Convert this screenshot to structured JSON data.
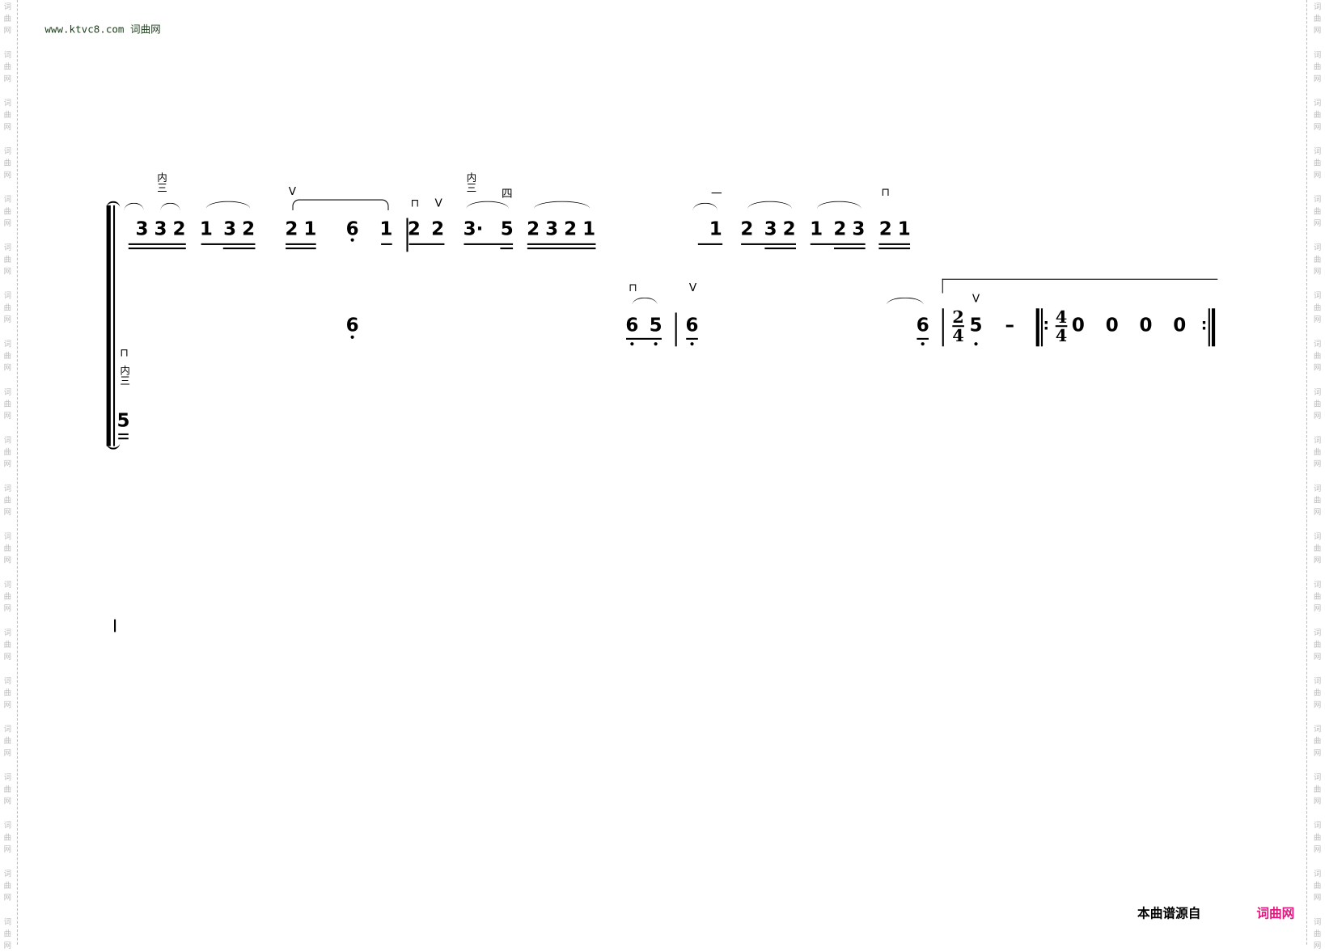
{
  "header": {
    "site_url": "www.ktvc8.com",
    "site_name": "词曲网"
  },
  "watermark": {
    "chars": [
      "词",
      "曲",
      "网"
    ]
  },
  "footer": {
    "source_label": "本曲谱源自",
    "source_site": "词曲网",
    "source_color": "#e0187f"
  },
  "score": {
    "row1_notes": [
      "3",
      "3",
      "2",
      "1",
      "3",
      "2",
      "2",
      "1",
      "6",
      "1",
      "2",
      "2",
      "3·",
      "5",
      "2",
      "3",
      "2",
      "1",
      "1",
      "2",
      "3",
      "2",
      "1",
      "2",
      "3",
      "2",
      "1"
    ],
    "row2_notes": [
      "6",
      "6",
      "5",
      "6",
      "6",
      "5",
      "–",
      "0",
      "0",
      "0",
      "0"
    ],
    "row3_notes": [
      "5"
    ],
    "time_signatures": [
      {
        "top": "2",
        "bottom": "4"
      },
      {
        "top": "4",
        "bottom": "4"
      }
    ],
    "repeat_dots": [
      ":",
      ":"
    ],
    "marks": {
      "fingering_inner3": "内三",
      "fingering_4": "四",
      "fingering_1": "一",
      "down_bow": "⊓",
      "up_bow": "V"
    }
  }
}
